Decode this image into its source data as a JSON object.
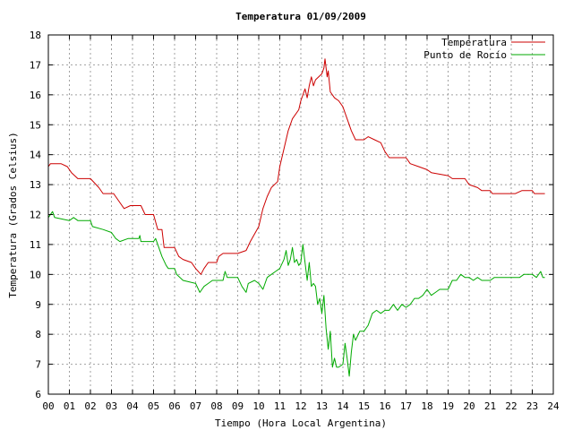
{
  "chart_data": {
    "type": "line",
    "title": "Temperatura 01/09/2009",
    "xlabel": "Tiempo (Hora Local Argentina)",
    "ylabel": "Temperatura (Grados Celsius)",
    "xlim": [
      0,
      24
    ],
    "ylim": [
      6,
      18
    ],
    "x_ticks": [
      "00",
      "01",
      "02",
      "03",
      "04",
      "05",
      "06",
      "07",
      "08",
      "09",
      "10",
      "11",
      "12",
      "13",
      "14",
      "15",
      "16",
      "17",
      "18",
      "19",
      "20",
      "21",
      "22",
      "23",
      "24"
    ],
    "y_ticks": [
      "6",
      "7",
      "8",
      "9",
      "10",
      "11",
      "12",
      "13",
      "14",
      "15",
      "16",
      "17",
      "18"
    ],
    "grid": true,
    "legend_position": "top-right",
    "series": [
      {
        "name": "Temperatura",
        "color": "#cc0000",
        "points": [
          [
            0.0,
            13.6
          ],
          [
            0.1,
            13.7
          ],
          [
            0.6,
            13.7
          ],
          [
            0.9,
            13.6
          ],
          [
            1.1,
            13.4
          ],
          [
            1.4,
            13.2
          ],
          [
            2.0,
            13.2
          ],
          [
            2.4,
            12.9
          ],
          [
            2.6,
            12.7
          ],
          [
            3.1,
            12.7
          ],
          [
            3.4,
            12.4
          ],
          [
            3.6,
            12.2
          ],
          [
            3.9,
            12.3
          ],
          [
            4.4,
            12.3
          ],
          [
            4.6,
            12.0
          ],
          [
            5.0,
            12.0
          ],
          [
            5.2,
            11.5
          ],
          [
            5.4,
            11.5
          ],
          [
            5.5,
            10.9
          ],
          [
            6.0,
            10.9
          ],
          [
            6.2,
            10.6
          ],
          [
            6.4,
            10.5
          ],
          [
            6.8,
            10.4
          ],
          [
            7.0,
            10.2
          ],
          [
            7.25,
            10.0
          ],
          [
            7.4,
            10.2
          ],
          [
            7.6,
            10.4
          ],
          [
            8.0,
            10.4
          ],
          [
            8.1,
            10.6
          ],
          [
            8.3,
            10.7
          ],
          [
            9.0,
            10.7
          ],
          [
            9.4,
            10.8
          ],
          [
            9.6,
            11.1
          ],
          [
            10.0,
            11.6
          ],
          [
            10.2,
            12.2
          ],
          [
            10.4,
            12.6
          ],
          [
            10.6,
            12.9
          ],
          [
            10.9,
            13.1
          ],
          [
            11.0,
            13.6
          ],
          [
            11.2,
            14.2
          ],
          [
            11.4,
            14.8
          ],
          [
            11.6,
            15.2
          ],
          [
            11.9,
            15.5
          ],
          [
            12.0,
            15.8
          ],
          [
            12.2,
            16.2
          ],
          [
            12.3,
            15.9
          ],
          [
            12.4,
            16.3
          ],
          [
            12.5,
            16.6
          ],
          [
            12.6,
            16.3
          ],
          [
            12.7,
            16.5
          ],
          [
            13.0,
            16.7
          ],
          [
            13.1,
            16.9
          ],
          [
            13.15,
            17.2
          ],
          [
            13.25,
            16.6
          ],
          [
            13.3,
            16.8
          ],
          [
            13.4,
            16.1
          ],
          [
            13.6,
            15.9
          ],
          [
            13.8,
            15.8
          ],
          [
            14.0,
            15.6
          ],
          [
            14.2,
            15.2
          ],
          [
            14.4,
            14.8
          ],
          [
            14.6,
            14.5
          ],
          [
            15.0,
            14.5
          ],
          [
            15.2,
            14.6
          ],
          [
            15.5,
            14.5
          ],
          [
            15.8,
            14.4
          ],
          [
            16.0,
            14.1
          ],
          [
            16.2,
            13.9
          ],
          [
            17.0,
            13.9
          ],
          [
            17.2,
            13.7
          ],
          [
            17.6,
            13.6
          ],
          [
            18.0,
            13.5
          ],
          [
            18.2,
            13.4
          ],
          [
            19.0,
            13.3
          ],
          [
            19.2,
            13.2
          ],
          [
            19.8,
            13.2
          ],
          [
            20.0,
            13.0
          ],
          [
            20.4,
            12.9
          ],
          [
            20.6,
            12.8
          ],
          [
            21.0,
            12.8
          ],
          [
            21.1,
            12.7
          ],
          [
            22.0,
            12.7
          ],
          [
            22.2,
            12.7
          ],
          [
            22.5,
            12.8
          ],
          [
            23.0,
            12.8
          ],
          [
            23.1,
            12.7
          ],
          [
            23.6,
            12.7
          ]
        ]
      },
      {
        "name": "Punto de Rocío",
        "color": "#00aa00",
        "points": [
          [
            0.0,
            11.9
          ],
          [
            0.2,
            12.1
          ],
          [
            0.3,
            11.9
          ],
          [
            1.0,
            11.8
          ],
          [
            1.2,
            11.9
          ],
          [
            1.4,
            11.8
          ],
          [
            2.0,
            11.8
          ],
          [
            2.1,
            11.6
          ],
          [
            2.6,
            11.5
          ],
          [
            3.0,
            11.4
          ],
          [
            3.2,
            11.2
          ],
          [
            3.4,
            11.1
          ],
          [
            3.8,
            11.2
          ],
          [
            4.3,
            11.2
          ],
          [
            4.35,
            11.3
          ],
          [
            4.4,
            11.1
          ],
          [
            5.0,
            11.1
          ],
          [
            5.1,
            11.2
          ],
          [
            5.2,
            11.0
          ],
          [
            5.4,
            10.6
          ],
          [
            5.6,
            10.3
          ],
          [
            5.7,
            10.2
          ],
          [
            6.0,
            10.2
          ],
          [
            6.1,
            10.0
          ],
          [
            6.4,
            9.8
          ],
          [
            7.0,
            9.7
          ],
          [
            7.2,
            9.4
          ],
          [
            7.4,
            9.6
          ],
          [
            7.6,
            9.7
          ],
          [
            7.8,
            9.8
          ],
          [
            8.3,
            9.8
          ],
          [
            8.4,
            10.1
          ],
          [
            8.5,
            9.9
          ],
          [
            9.0,
            9.9
          ],
          [
            9.2,
            9.6
          ],
          [
            9.4,
            9.4
          ],
          [
            9.5,
            9.7
          ],
          [
            9.8,
            9.8
          ],
          [
            10.0,
            9.7
          ],
          [
            10.2,
            9.5
          ],
          [
            10.4,
            9.9
          ],
          [
            10.6,
            10.0
          ],
          [
            10.8,
            10.1
          ],
          [
            11.0,
            10.2
          ],
          [
            11.2,
            10.5
          ],
          [
            11.3,
            10.8
          ],
          [
            11.4,
            10.3
          ],
          [
            11.5,
            10.5
          ],
          [
            11.6,
            10.9
          ],
          [
            11.7,
            10.4
          ],
          [
            11.8,
            10.5
          ],
          [
            11.9,
            10.3
          ],
          [
            12.0,
            10.4
          ],
          [
            12.1,
            11.0
          ],
          [
            12.2,
            10.4
          ],
          [
            12.3,
            9.8
          ],
          [
            12.4,
            10.4
          ],
          [
            12.5,
            9.6
          ],
          [
            12.6,
            9.7
          ],
          [
            12.7,
            9.6
          ],
          [
            12.8,
            9.0
          ],
          [
            12.9,
            9.2
          ],
          [
            13.0,
            8.7
          ],
          [
            13.1,
            9.3
          ],
          [
            13.2,
            8.2
          ],
          [
            13.3,
            7.5
          ],
          [
            13.4,
            8.1
          ],
          [
            13.5,
            6.9
          ],
          [
            13.6,
            7.2
          ],
          [
            13.7,
            6.9
          ],
          [
            13.8,
            6.9
          ],
          [
            14.0,
            7.0
          ],
          [
            14.1,
            7.7
          ],
          [
            14.2,
            7.2
          ],
          [
            14.3,
            6.6
          ],
          [
            14.4,
            7.4
          ],
          [
            14.5,
            8.0
          ],
          [
            14.6,
            7.8
          ],
          [
            14.8,
            8.1
          ],
          [
            15.0,
            8.1
          ],
          [
            15.2,
            8.3
          ],
          [
            15.4,
            8.7
          ],
          [
            15.6,
            8.8
          ],
          [
            15.8,
            8.7
          ],
          [
            16.0,
            8.8
          ],
          [
            16.2,
            8.8
          ],
          [
            16.4,
            9.0
          ],
          [
            16.6,
            8.8
          ],
          [
            16.8,
            9.0
          ],
          [
            17.0,
            8.9
          ],
          [
            17.2,
            9.0
          ],
          [
            17.4,
            9.2
          ],
          [
            17.6,
            9.2
          ],
          [
            17.8,
            9.3
          ],
          [
            18.0,
            9.5
          ],
          [
            18.2,
            9.3
          ],
          [
            18.4,
            9.4
          ],
          [
            18.6,
            9.5
          ],
          [
            19.0,
            9.5
          ],
          [
            19.2,
            9.8
          ],
          [
            19.4,
            9.8
          ],
          [
            19.6,
            10.0
          ],
          [
            19.8,
            9.9
          ],
          [
            20.0,
            9.9
          ],
          [
            20.2,
            9.8
          ],
          [
            20.4,
            9.9
          ],
          [
            20.6,
            9.8
          ],
          [
            21.0,
            9.8
          ],
          [
            21.2,
            9.9
          ],
          [
            21.6,
            9.9
          ],
          [
            22.0,
            9.9
          ],
          [
            22.4,
            9.9
          ],
          [
            22.6,
            10.0
          ],
          [
            23.0,
            10.0
          ],
          [
            23.2,
            9.9
          ],
          [
            23.4,
            10.1
          ],
          [
            23.5,
            9.9
          ],
          [
            23.6,
            9.9
          ]
        ]
      }
    ]
  }
}
